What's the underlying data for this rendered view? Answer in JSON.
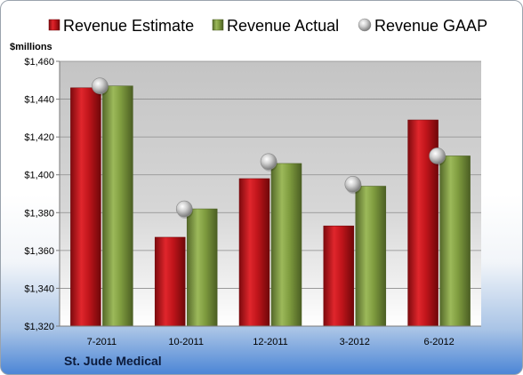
{
  "company": "St. Jude Medical",
  "chart_data": {
    "type": "bar",
    "unit_label": "$millions",
    "categories": [
      "7-2011",
      "10-2011",
      "12-2011",
      "3-2012",
      "6-2012"
    ],
    "series": [
      {
        "name": "Revenue Estimate",
        "type": "bar",
        "color": "#c0151b",
        "values": [
          1446,
          1367,
          1398,
          1373,
          1429
        ]
      },
      {
        "name": "Revenue Actual",
        "type": "bar",
        "color": "#7f9c3f",
        "values": [
          1447,
          1382,
          1406,
          1394,
          1410
        ]
      },
      {
        "name": "Revenue GAAP",
        "type": "marker",
        "color": "#a0a0a0",
        "values": [
          1447,
          1382,
          1407,
          1395,
          1410
        ]
      }
    ],
    "ylim": [
      1320,
      1460
    ],
    "yticks": [
      1320,
      1340,
      1360,
      1380,
      1400,
      1420,
      1440,
      1460
    ],
    "ytick_labels": [
      "$1,320",
      "$1,340",
      "$1,360",
      "$1,380",
      "$1,400",
      "$1,420",
      "$1,440",
      "$1,460"
    ],
    "grid": true,
    "legend_position": "top"
  }
}
